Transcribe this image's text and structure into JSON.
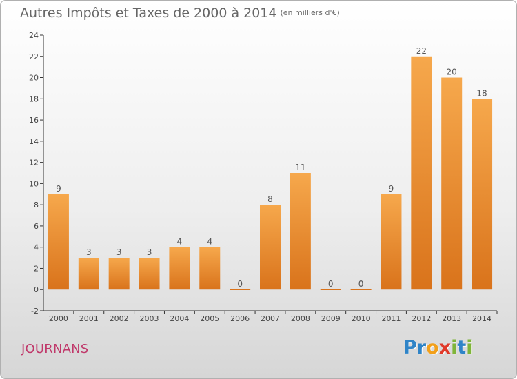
{
  "title": "Autres Impôts et Taxes de 2000 à 2014",
  "title_unit": "(en milliers d'€)",
  "commune": "JOURNANS",
  "logo": {
    "letters": [
      "P",
      "r",
      "o",
      "x",
      "i",
      "t",
      "i"
    ],
    "colors": [
      "#2f84c7",
      "#2f84c7",
      "#f2a01a",
      "#e03a2a",
      "#7fb53a",
      "#2f84c7",
      "#7fb53a"
    ]
  },
  "colors": {
    "bar_top": "#f6a84c",
    "bar_bottom": "#d9731b",
    "axis": "#333333",
    "grid": "#dddddd"
  },
  "chart_data": {
    "type": "bar",
    "title": "Autres Impôts et Taxes de 2000 à 2014",
    "ylabel": "",
    "xlabel": "",
    "categories": [
      "2000",
      "2001",
      "2002",
      "2003",
      "2004",
      "2005",
      "2006",
      "2007",
      "2008",
      "2009",
      "2010",
      "2011",
      "2012",
      "2013",
      "2014"
    ],
    "values": [
      9,
      3,
      3,
      3,
      4,
      4,
      0,
      8,
      11,
      0,
      0,
      9,
      22,
      20,
      18
    ],
    "ylim": [
      -2,
      24
    ],
    "yticks": [
      -2,
      0,
      2,
      4,
      6,
      8,
      10,
      12,
      14,
      16,
      18,
      20,
      22,
      24
    ],
    "data_labels": [
      "9",
      "3",
      "3",
      "3",
      "4",
      "4",
      "0",
      "8",
      "11",
      "0",
      "0",
      "9",
      "22",
      "20",
      "18"
    ],
    "grid": false
  }
}
